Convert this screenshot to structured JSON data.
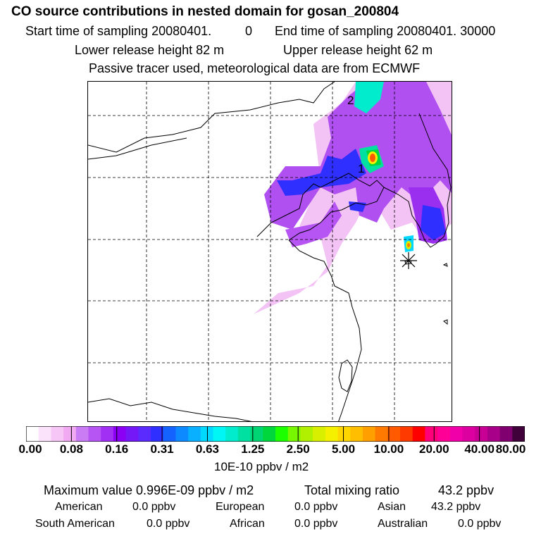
{
  "header": {
    "title": "CO  source contributions in nested domain for gosan_200804",
    "start_label": "Start time of sampling 20080401.",
    "start_value": "0",
    "end_label": "End time of sampling 20080401. 30000",
    "lower_release": "Lower release height   82 m",
    "upper_release": "Upper release height   62 m",
    "tracer_info": "Passive tracer used, meteorological data are from ECMWF"
  },
  "map": {
    "contour_labels": [
      "2",
      "1"
    ],
    "site_marker": "asterisk-station-icon"
  },
  "colorbar": {
    "colors": [
      "#ffffff",
      "#fbe3fb",
      "#f6c6f6",
      "#f1a9f1",
      "#ca7cf4",
      "#b654f4",
      "#a230f4",
      "#8b00f4",
      "#7418f8",
      "#5b2afc",
      "#2f2fff",
      "#1463ff",
      "#0d8aff",
      "#08b0ff",
      "#00d8ff",
      "#00f5f5",
      "#00eccc",
      "#00e0a0",
      "#00d574",
      "#00d73c",
      "#1bff00",
      "#78f800",
      "#b0f000",
      "#d8f000",
      "#f5f000",
      "#ffd700",
      "#ffbf00",
      "#ff9f00",
      "#ff7a00",
      "#ff5a00",
      "#ff3a00",
      "#ff0000",
      "#ff007a",
      "#ff0096",
      "#f000a8",
      "#dc00a0",
      "#c80094",
      "#a80088",
      "#800070",
      "#40003a"
    ],
    "tick_labels": [
      "0.00",
      "0.08",
      "0.16",
      "0.31",
      "0.63",
      "1.25",
      "2.50",
      "5.00",
      "10.00",
      "20.00",
      "40.00",
      "80.00"
    ],
    "unit": "10E-10 ppbv / m2"
  },
  "stats": {
    "maximum": "Maximum value  0.996E-09 ppbv / m2",
    "total_mixing": "Total mixing ratio",
    "total_mixing_value": "43.2 ppbv",
    "regions": [
      {
        "name": "American",
        "value": "0.0 ppbv"
      },
      {
        "name": "European",
        "value": "0.0 ppbv"
      },
      {
        "name": "Asian",
        "value": "43.2 ppbv"
      },
      {
        "name": "South American",
        "value": "0.0 ppbv"
      },
      {
        "name": "African",
        "value": "0.0 ppbv"
      },
      {
        "name": "Australian",
        "value": "0.0 ppbv"
      }
    ]
  }
}
